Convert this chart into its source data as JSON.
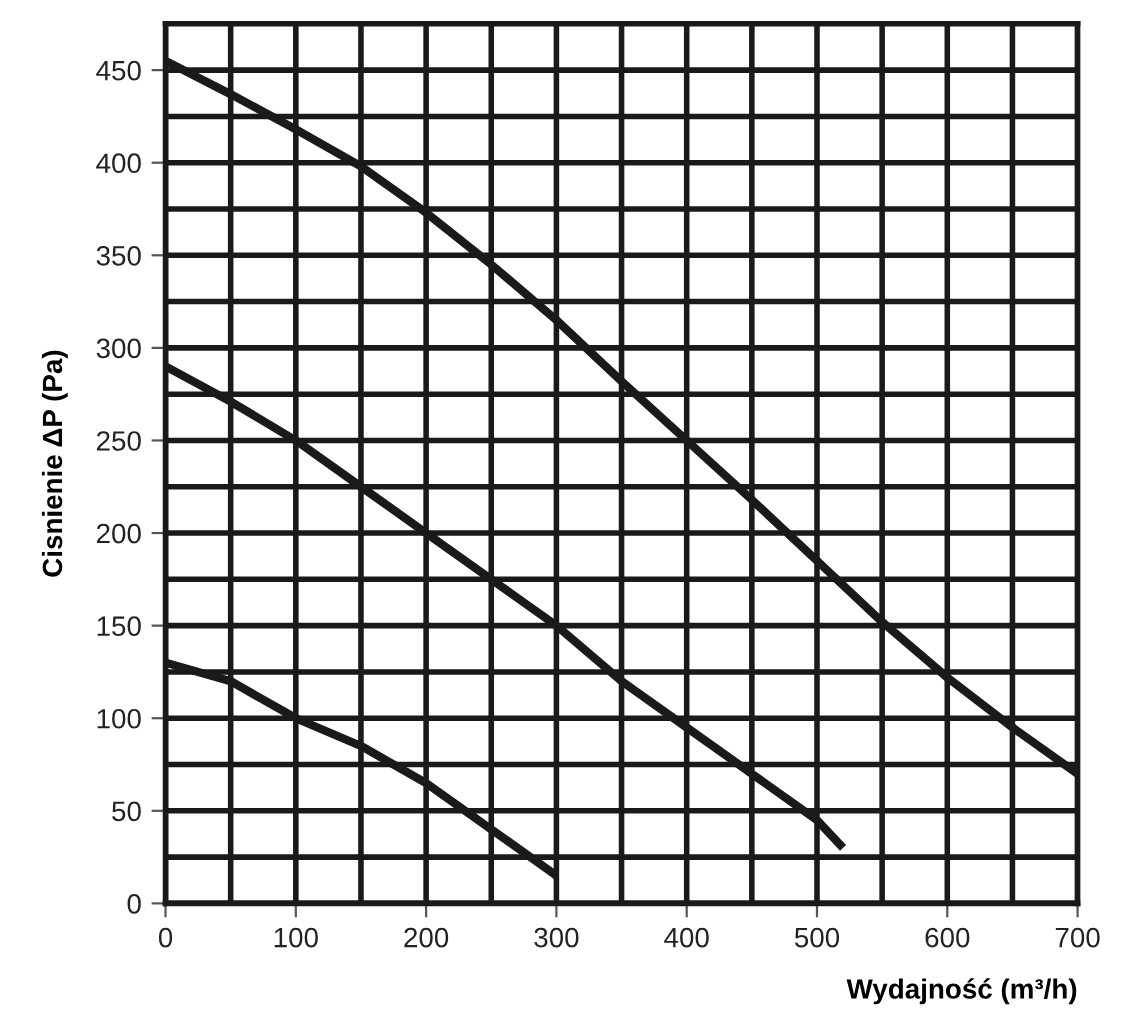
{
  "chart_data": {
    "type": "line",
    "xlabel": "Wydajność (m³/h)",
    "ylabel": "Cisnienie ΔP (Pa)",
    "xlim": [
      0,
      700
    ],
    "ylim": [
      0,
      475
    ],
    "xticks": [
      0,
      100,
      200,
      300,
      400,
      500,
      600,
      700,
      {
        "value": 50,
        "label": null
      },
      {
        "value": 150,
        "label": null
      },
      {
        "value": 250,
        "label": null
      },
      {
        "value": 350,
        "label": null
      },
      {
        "value": 450,
        "label": null
      },
      {
        "value": 550,
        "label": null
      },
      {
        "value": 650,
        "label": null
      }
    ],
    "yticks": [
      0,
      50,
      100,
      150,
      200,
      250,
      300,
      350,
      400,
      450,
      {
        "value": 25,
        "label": null
      },
      {
        "value": 75,
        "label": null
      },
      {
        "value": 125,
        "label": null
      },
      {
        "value": 175,
        "label": null
      },
      {
        "value": 225,
        "label": null
      },
      {
        "value": 275,
        "label": null
      },
      {
        "value": 325,
        "label": null
      },
      {
        "value": 375,
        "label": null
      },
      {
        "value": 425,
        "label": null
      }
    ],
    "grid": true,
    "legend": false,
    "marker": "none",
    "line_style": "solid",
    "series": [
      {
        "color": "#1a1a1a",
        "x": [
          0,
          50,
          100,
          150,
          200,
          250,
          300,
          350,
          400,
          450,
          500,
          550,
          600,
          650,
          700
        ],
        "values": [
          455,
          437,
          418,
          398,
          373,
          345,
          315,
          282,
          250,
          218,
          185,
          152,
          122,
          95,
          70
        ]
      },
      {
        "color": "#1a1a1a",
        "x": [
          0,
          50,
          100,
          150,
          200,
          250,
          300,
          350,
          400,
          450,
          500,
          520
        ],
        "values": [
          290,
          271,
          250,
          225,
          200,
          175,
          150,
          120,
          95,
          70,
          45,
          30
        ]
      },
      {
        "color": "#1a1a1a",
        "x": [
          0,
          50,
          100,
          150,
          200,
          250,
          300
        ],
        "values": [
          130,
          120,
          100,
          85,
          65,
          40,
          15
        ]
      }
    ]
  }
}
